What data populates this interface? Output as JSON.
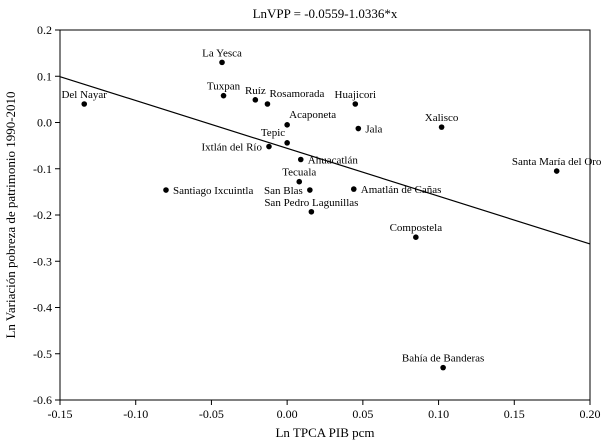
{
  "chart_data": {
    "type": "scatter",
    "title": "LnVPP = -0.0559-1.0336*x",
    "xlabel": "Ln TPCA PIB pcm",
    "ylabel": "Ln Variación pobreza de patrimonio 1990-2010",
    "xlim": [
      -0.15,
      0.2
    ],
    "ylim": [
      -0.6,
      0.2
    ],
    "x_tick_labels": [
      "-0.15",
      "-0.10",
      "-0.05",
      "0.00",
      "0.05",
      "0.10",
      "0.15",
      "0.20"
    ],
    "y_tick_labels": [
      "0.2",
      "0.1",
      "0.0",
      "-0.1",
      "-0.2",
      "-0.3",
      "-0.4",
      "-0.5",
      "-0.6"
    ],
    "grid": false,
    "legend": "none",
    "point_color": "#000000",
    "line_color": "#000000",
    "frame_color": "#000000",
    "regression": {
      "slope": -1.0336,
      "intercept": -0.0559,
      "equation": "LnVPP = -0.0559-1.0336*x"
    },
    "points": [
      {
        "label": "Del Nayar",
        "x": -0.134,
        "y": 0.04,
        "label_pos": "above"
      },
      {
        "label": "La Yesca",
        "x": -0.043,
        "y": 0.13,
        "label_pos": "above"
      },
      {
        "label": "Tuxpan",
        "x": -0.042,
        "y": 0.058,
        "label_pos": "above"
      },
      {
        "label": "Ruíz",
        "x": -0.021,
        "y": 0.049,
        "label_pos": "above"
      },
      {
        "label": "Rosamorada",
        "x": -0.013,
        "y": 0.04,
        "label_pos": "above-right"
      },
      {
        "label": "Acaponeta",
        "x": 0.0,
        "y": -0.005,
        "label_pos": "above-right"
      },
      {
        "label": "Huajicori",
        "x": 0.045,
        "y": 0.04,
        "label_pos": "above"
      },
      {
        "label": "Jala",
        "x": 0.047,
        "y": -0.013,
        "label_pos": "right"
      },
      {
        "label": "Xalisco",
        "x": 0.102,
        "y": -0.01,
        "label_pos": "above"
      },
      {
        "label": "Tepic",
        "x": 0.0,
        "y": -0.044,
        "label_pos": "above-left"
      },
      {
        "label": "Ixtlán del Río",
        "x": -0.012,
        "y": -0.052,
        "label_pos": "left"
      },
      {
        "label": "Ahuacatlán",
        "x": 0.009,
        "y": -0.08,
        "label_pos": "right"
      },
      {
        "label": "Tecuala",
        "x": 0.008,
        "y": -0.128,
        "label_pos": "above"
      },
      {
        "label": "Santa María del Oro",
        "x": 0.178,
        "y": -0.105,
        "label_pos": "above"
      },
      {
        "label": "Santiago Ixcuintla",
        "x": -0.08,
        "y": -0.146,
        "label_pos": "right"
      },
      {
        "label": "San Blas",
        "x": 0.015,
        "y": -0.146,
        "label_pos": "left"
      },
      {
        "label": "Amatlán de Cañas",
        "x": 0.044,
        "y": -0.144,
        "label_pos": "right"
      },
      {
        "label": "San Pedro Lagunillas",
        "x": 0.016,
        "y": -0.193,
        "label_pos": "above"
      },
      {
        "label": "Compostela",
        "x": 0.085,
        "y": -0.248,
        "label_pos": "above"
      },
      {
        "label": "Bahía de Banderas",
        "x": 0.103,
        "y": -0.53,
        "label_pos": "above"
      }
    ]
  }
}
